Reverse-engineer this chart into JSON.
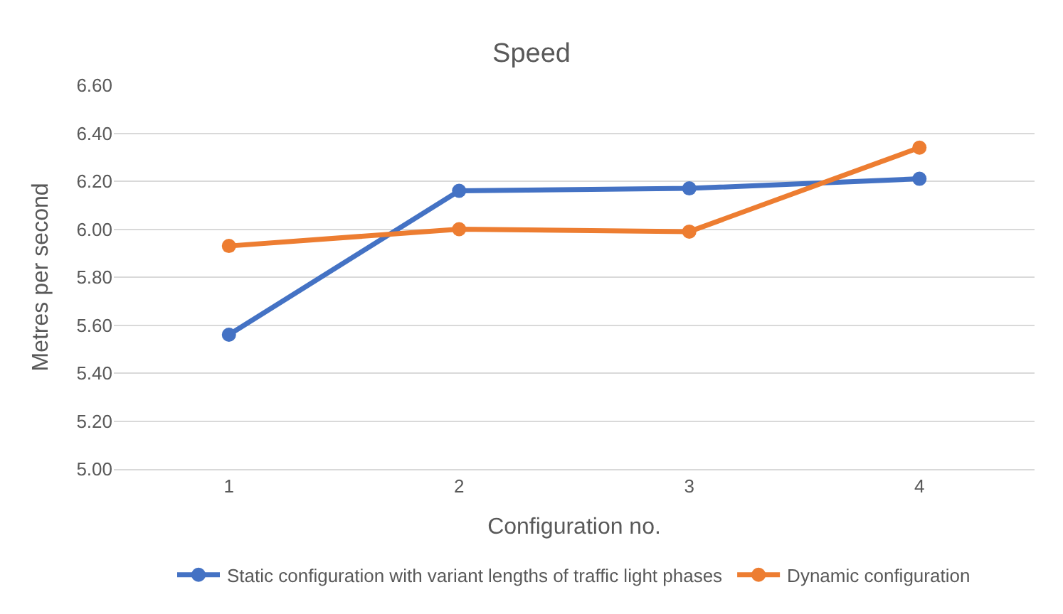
{
  "chart_data": {
    "type": "line",
    "title": "Speed",
    "xlabel": "Configuration no.",
    "ylabel": "Metres per second",
    "categories": [
      "1",
      "2",
      "3",
      "4"
    ],
    "series": [
      {
        "name": "Static configuration with variant lengths of traffic light phases",
        "color": "#4472c4",
        "values": [
          5.56,
          6.16,
          6.17,
          6.21
        ]
      },
      {
        "name": "Dynamic configuration",
        "color": "#ed7d31",
        "values": [
          5.93,
          6.0,
          5.99,
          6.34
        ]
      }
    ],
    "ylim": [
      5.0,
      6.6
    ],
    "yticks": [
      {
        "value": 5.0,
        "label": "5.00"
      },
      {
        "value": 5.2,
        "label": "5.20"
      },
      {
        "value": 5.4,
        "label": "5.40"
      },
      {
        "value": 5.6,
        "label": "5.60"
      },
      {
        "value": 5.8,
        "label": "5.80"
      },
      {
        "value": 6.0,
        "label": "6.00"
      },
      {
        "value": 6.2,
        "label": "6.20"
      },
      {
        "value": 6.4,
        "label": "6.40"
      },
      {
        "value": 6.6,
        "label": "6.60"
      }
    ],
    "grid": "y",
    "legend": "bottom",
    "marker": "circle",
    "line_style": "solid"
  }
}
